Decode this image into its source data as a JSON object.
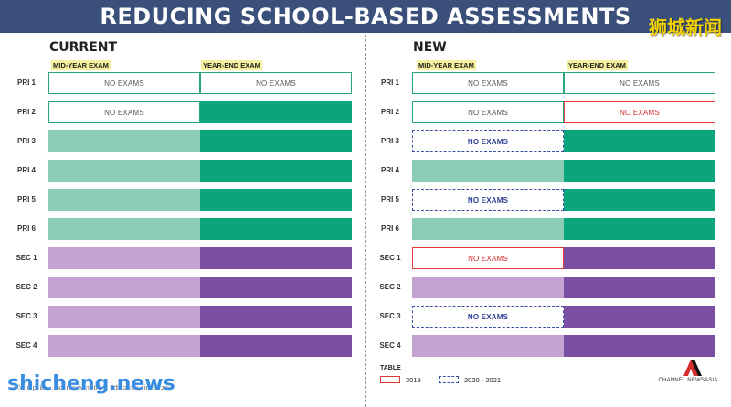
{
  "title": "REDUCING SCHOOL-BASED ASSESSMENTS",
  "watermark_top": "狮城新闻",
  "watermark_bottom": "shicheng.news",
  "current": {
    "heading": "CURRENT",
    "col_mid": "MID-YEAR EXAM",
    "col_year": "YEAR-END EXAM",
    "rows": [
      "PRI 1",
      "PRI 2",
      "PRI 3",
      "PRI 4",
      "PRI 5",
      "PRI 6",
      "SEC 1",
      "SEC 2",
      "SEC 3",
      "SEC 4"
    ],
    "no_exams": "NO EXAMS"
  },
  "new": {
    "heading": "NEW",
    "col_mid": "MID-YEAR EXAM",
    "col_year": "YEAR-END EXAM",
    "rows": [
      "PRI 1",
      "PRI 2",
      "PRI 3",
      "PRI 4",
      "PRI 5",
      "PRI 6",
      "SEC 1",
      "SEC 2",
      "SEC 3",
      "SEC 4"
    ],
    "no_exams": "NO EXAMS"
  },
  "legend": {
    "title": "TABLE",
    "item_2019": "2019",
    "item_2020": "2020 - 2021"
  },
  "source_note": "Infographic: ... Source: Ministry of Education Singapore",
  "logo_text": "CHANNEL NEWSASIA",
  "colors": {
    "header_bg": "#3a4f7a",
    "green_light": "#8ccdb7",
    "green_dark": "#0aa57a",
    "purple_light": "#c4a3d2",
    "purple_dark": "#7a4fa2",
    "red": "#e0393a",
    "blue_dash": "#3a4fa0"
  }
}
